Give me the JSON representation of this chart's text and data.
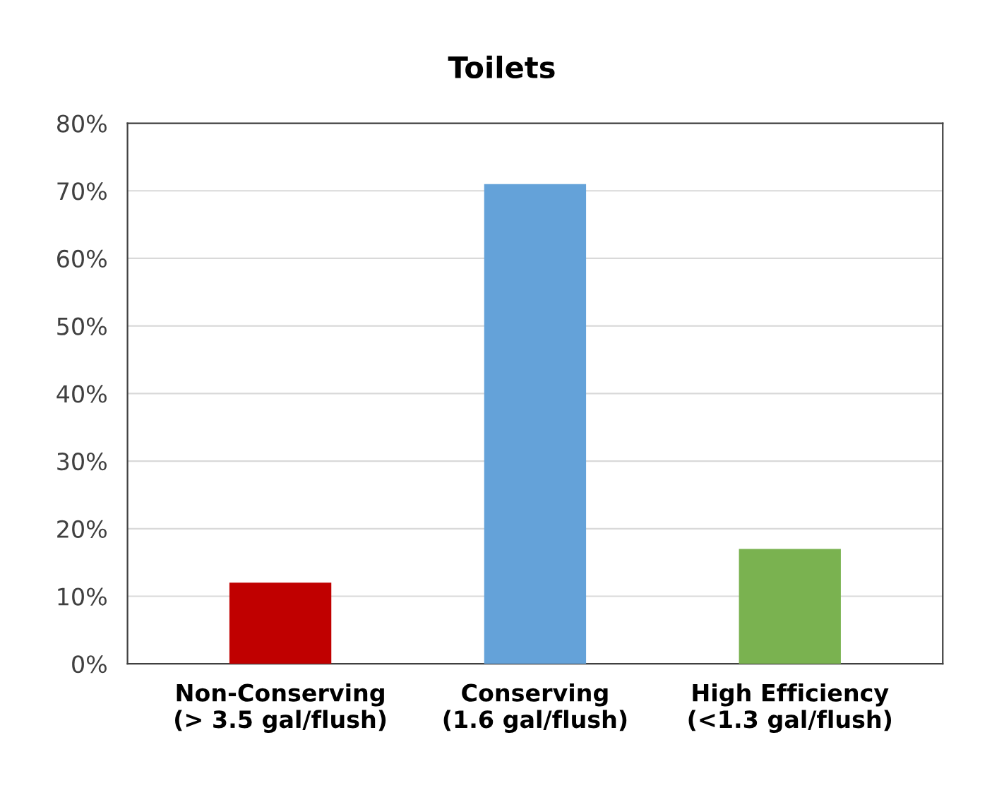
{
  "chart_data": {
    "type": "bar",
    "title": "Toilets",
    "categories": [
      "Non-Conserving\n(> 3.5 gal/flush)",
      "Conserving\n(1.6 gal/flush)",
      "High Efficiency\n(<1.3 gal/flush)"
    ],
    "values": [
      12,
      71,
      17
    ],
    "colors": [
      "#c00000",
      "#64a2d9",
      "#7ab250"
    ],
    "ylim": [
      0,
      80
    ],
    "yticks": [
      {
        "value": 0,
        "label": "0%"
      },
      {
        "value": 10,
        "label": "10%"
      },
      {
        "value": 20,
        "label": "20%"
      },
      {
        "value": 30,
        "label": "30%"
      },
      {
        "value": 40,
        "label": "40%"
      },
      {
        "value": 50,
        "label": "50%"
      },
      {
        "value": 60,
        "label": "60%"
      },
      {
        "value": 70,
        "label": "70%"
      },
      {
        "value": 80,
        "label": "80%"
      }
    ],
    "grid": "y",
    "legend": false
  }
}
